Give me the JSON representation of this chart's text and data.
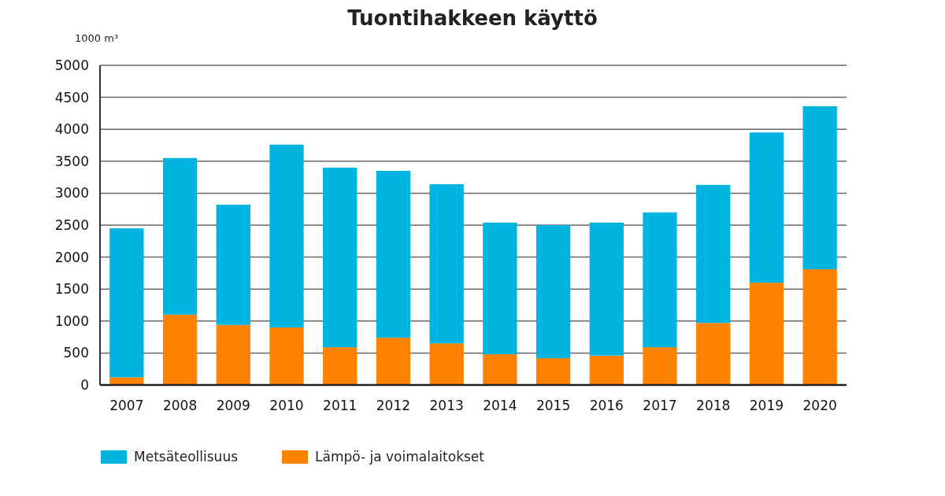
{
  "chart_data": {
    "type": "bar",
    "title": "Tuontihakkeen käyttö",
    "ylabel": "1000 m³",
    "stacked": true,
    "categories": [
      "2007",
      "2008",
      "2009",
      "2010",
      "2011",
      "2012",
      "2013",
      "2014",
      "2015",
      "2016",
      "2017",
      "2018",
      "2019",
      "2020"
    ],
    "series": [
      {
        "name": "Lämpö- ja voimalaitokset",
        "color": "#ff8200",
        "values": [
          120,
          1100,
          940,
          900,
          590,
          740,
          650,
          480,
          420,
          460,
          590,
          970,
          1600,
          1810
        ]
      },
      {
        "name": "Metsäteollisuus",
        "color": "#00b4e1",
        "values": [
          2330,
          2450,
          1880,
          2860,
          2810,
          2610,
          2490,
          2060,
          2080,
          2080,
          2110,
          2160,
          2350,
          2550
        ]
      }
    ],
    "ylim": [
      0,
      5000
    ],
    "yticks": [
      0,
      500,
      1000,
      1500,
      2000,
      2500,
      3000,
      3500,
      4000,
      4500,
      5000
    ],
    "grid": "y",
    "legend": "bottom left"
  }
}
